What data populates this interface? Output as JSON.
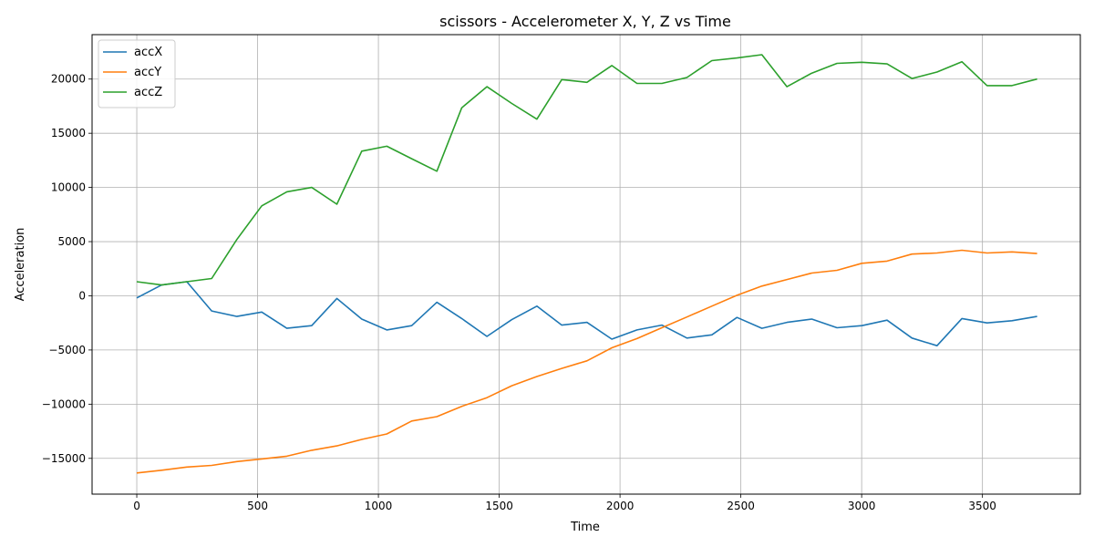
{
  "chart_data": {
    "type": "line",
    "title": "scissors - Accelerometer X, Y, Z vs Time",
    "xlabel": "Time",
    "ylabel": "Acceleration",
    "xlim": [
      -185,
      3905
    ],
    "ylim": [
      -18300,
      24100
    ],
    "xticks": [
      0,
      500,
      1000,
      1500,
      2000,
      2500,
      3000,
      3500
    ],
    "xtick_labels": [
      "0",
      "500",
      "1000",
      "1500",
      "2000",
      "2500",
      "3000",
      "3500"
    ],
    "yticks": [
      -15000,
      -10000,
      -5000,
      0,
      5000,
      10000,
      15000,
      20000
    ],
    "ytick_labels": [
      "−15000",
      "−10000",
      "−5000",
      "0",
      "5000",
      "10000",
      "15000",
      "20000"
    ],
    "grid": true,
    "legend_position": "top-left",
    "x": [
      0,
      103,
      207,
      310,
      414,
      517,
      621,
      724,
      828,
      931,
      1035,
      1138,
      1242,
      1345,
      1449,
      1552,
      1656,
      1759,
      1863,
      1966,
      2070,
      2173,
      2277,
      2380,
      2484,
      2587,
      2691,
      2794,
      2898,
      3001,
      3105,
      3208,
      3312,
      3415,
      3519,
      3622,
      3726
    ],
    "series": [
      {
        "name": "accX",
        "color": "#1f77b4",
        "values": [
          -200,
          1000,
          1300,
          -1400,
          -1900,
          -1500,
          -3000,
          -2750,
          -250,
          -2150,
          -3150,
          -2750,
          -600,
          -2100,
          -3750,
          -2200,
          -950,
          -2700,
          -2450,
          -4000,
          -3150,
          -2700,
          -3900,
          -3600,
          -2000,
          -3000,
          -2450,
          -2150,
          -2950,
          -2750,
          -2250,
          -3900,
          -4600,
          -2100,
          -2500,
          -2300,
          -1900
        ]
      },
      {
        "name": "accY",
        "color": "#ff7f0e",
        "values": [
          -16350,
          -16100,
          -15800,
          -15650,
          -15300,
          -15050,
          -14800,
          -14250,
          -13850,
          -13250,
          -12750,
          -11550,
          -11150,
          -10200,
          -9400,
          -8300,
          -7450,
          -6700,
          -6000,
          -4800,
          -3950,
          -2950,
          -1950,
          -950,
          50,
          900,
          1500,
          2100,
          2350,
          3000,
          3200,
          3850,
          3950,
          4200,
          3950,
          4050,
          3900
        ]
      },
      {
        "name": "accZ",
        "color": "#2ca02c",
        "values": [
          1300,
          1000,
          1300,
          1600,
          5200,
          8300,
          9600,
          10000,
          8450,
          13350,
          13800,
          12650,
          11500,
          17350,
          19300,
          17750,
          16300,
          19950,
          19700,
          21250,
          19600,
          19600,
          20150,
          21700,
          21950,
          22250,
          19300,
          20550,
          21450,
          21550,
          21400,
          20050,
          20650,
          21600,
          19400,
          19400,
          20000
        ]
      }
    ]
  }
}
